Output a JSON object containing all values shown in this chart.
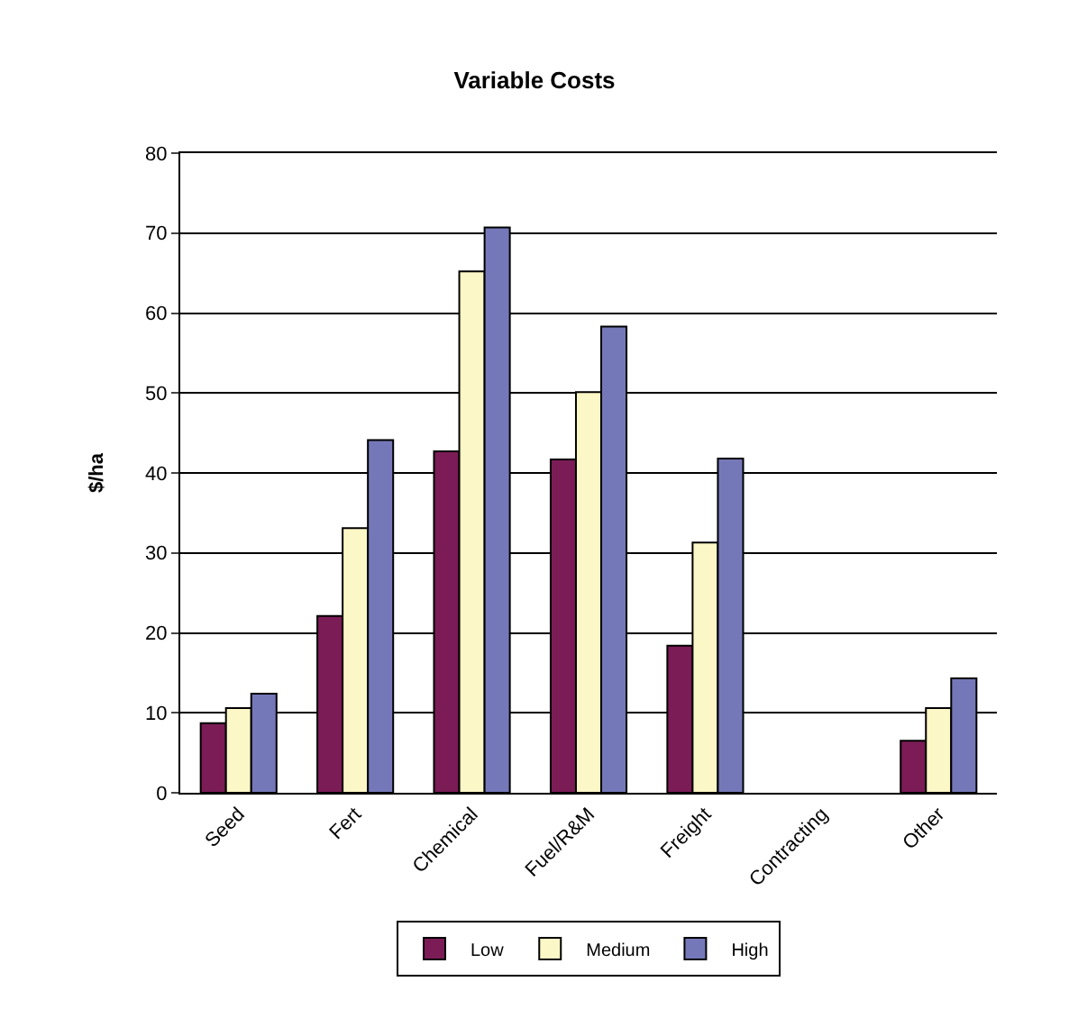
{
  "chart_data": {
    "type": "bar",
    "title": "Variable Costs",
    "ylabel": "$/ha",
    "categories": [
      "Seed",
      "Fert",
      "Chemical",
      "Fuel/R&M",
      "Freight",
      "Contracting",
      "Other"
    ],
    "series": [
      {
        "name": "Low",
        "color": "#7b1c56",
        "values": [
          8.7,
          22.1,
          42.7,
          41.7,
          18.4,
          null,
          6.5
        ]
      },
      {
        "name": "Medium",
        "color": "#fcf7c6",
        "values": [
          10.6,
          33.1,
          65.2,
          50.1,
          31.3,
          null,
          10.6
        ]
      },
      {
        "name": "High",
        "color": "#7578b8",
        "values": [
          12.4,
          44.1,
          70.7,
          58.3,
          41.8,
          null,
          14.3
        ]
      }
    ],
    "ylim": [
      0,
      80
    ],
    "yticks": [
      0,
      10,
      20,
      30,
      40,
      50,
      60,
      70,
      80
    ],
    "grid": "y",
    "legend": "bottom"
  }
}
